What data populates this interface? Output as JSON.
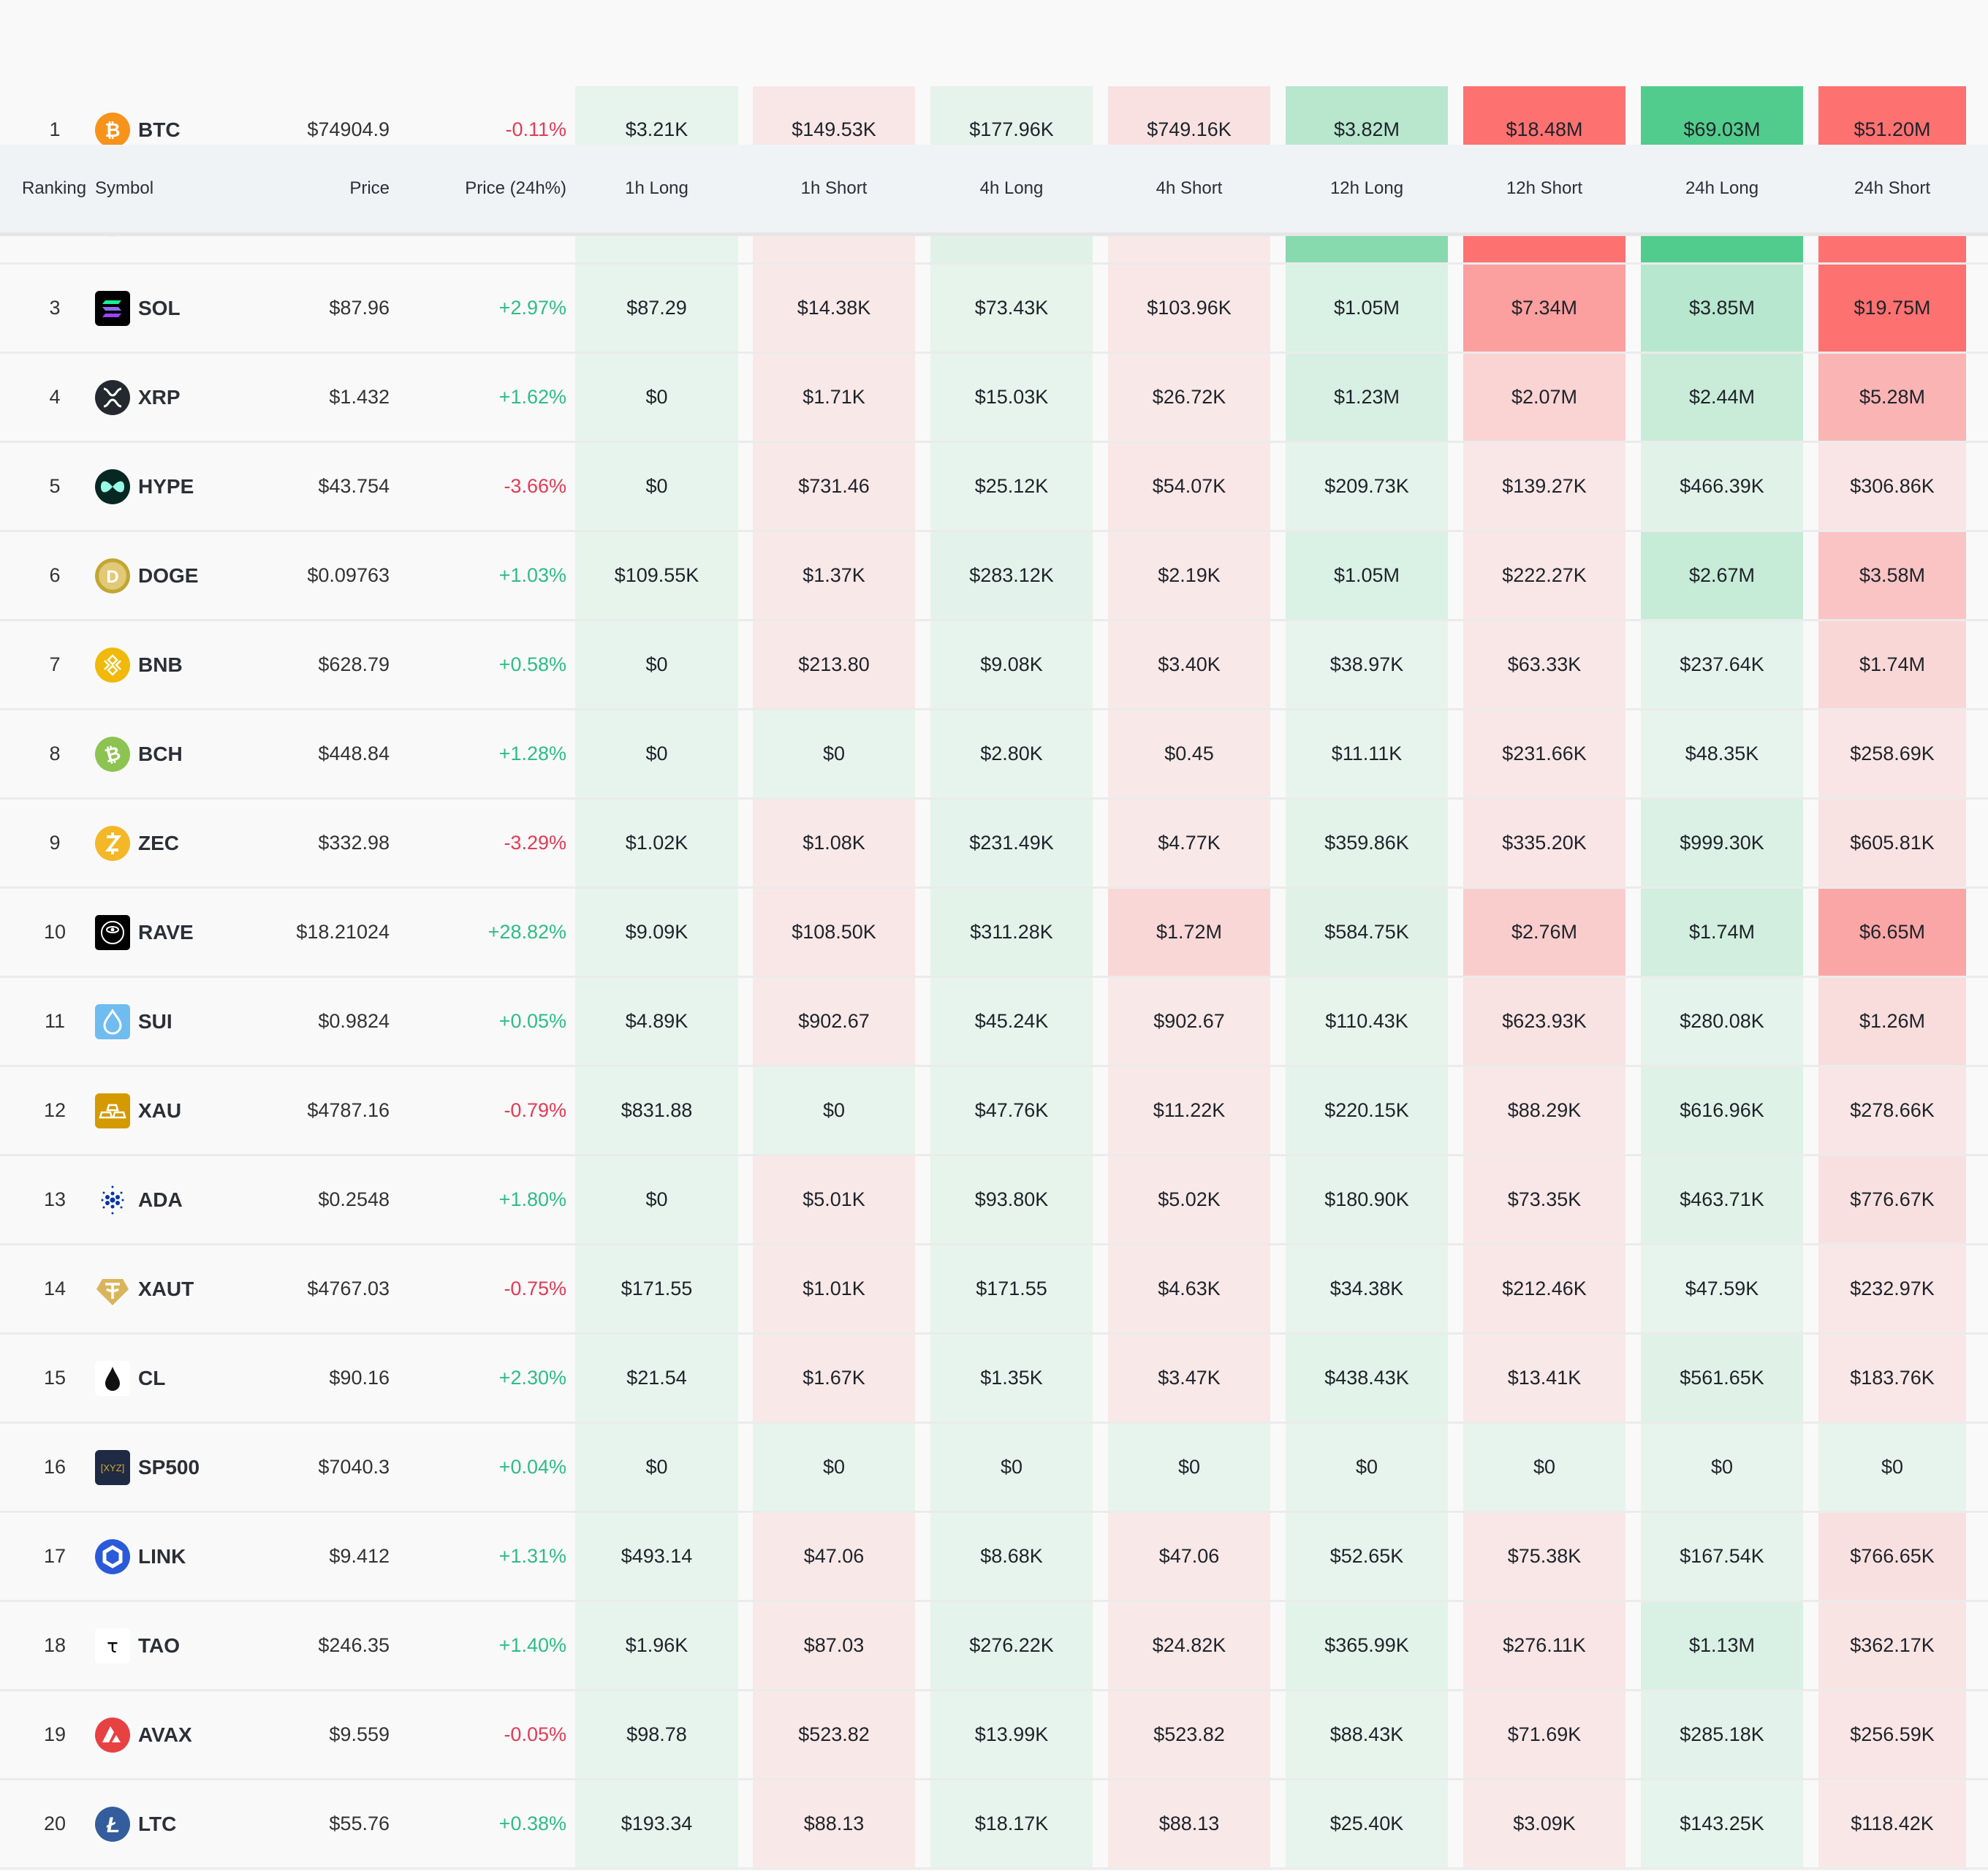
{
  "header": {
    "ranking": "Ranking",
    "symbol": "Symbol",
    "price": "Price",
    "price_change": "Price (24h%)",
    "columns": [
      "1h Long",
      "1h Short",
      "4h Long",
      "4h Short",
      "12h Long",
      "12h Short",
      "24h Long",
      "24h Short"
    ]
  },
  "colors": {
    "long_light": "#e7f4ed",
    "long_full": "#52cc8c",
    "short_light": "#f9e8e8",
    "short_full": "#fd7171",
    "up": "#2ebd85",
    "down": "#e33b54"
  },
  "partially_hidden_row_fill_levels": [
    0,
    0,
    0.05,
    0,
    0.65,
    1,
    1,
    1
  ],
  "rows": [
    {
      "rank": "1",
      "symbol": "BTC",
      "icon": "bitcoin-icon",
      "price": "$74904.9",
      "change": "-0.11%",
      "values": [
        "$3.21K",
        "$149.53K",
        "$177.96K",
        "$749.16K",
        "$3.82M",
        "$18.48M",
        "$69.03M",
        "$51.20M"
      ]
    },
    {
      "partial": true,
      "icon": "ethereum-icon"
    },
    {
      "rank": "3",
      "symbol": "SOL",
      "icon": "solana-icon",
      "price": "$87.96",
      "change": "+2.97%",
      "values": [
        "$87.29",
        "$14.38K",
        "$73.43K",
        "$103.96K",
        "$1.05M",
        "$7.34M",
        "$3.85M",
        "$19.75M"
      ]
    },
    {
      "rank": "4",
      "symbol": "XRP",
      "icon": "xrp-icon",
      "price": "$1.432",
      "change": "+1.62%",
      "values": [
        "$0",
        "$1.71K",
        "$15.03K",
        "$26.72K",
        "$1.23M",
        "$2.07M",
        "$2.44M",
        "$5.28M"
      ]
    },
    {
      "rank": "5",
      "symbol": "HYPE",
      "icon": "hyperliquid-icon",
      "price": "$43.754",
      "change": "-3.66%",
      "values": [
        "$0",
        "$731.46",
        "$25.12K",
        "$54.07K",
        "$209.73K",
        "$139.27K",
        "$466.39K",
        "$306.86K"
      ]
    },
    {
      "rank": "6",
      "symbol": "DOGE",
      "icon": "dogecoin-icon",
      "price": "$0.09763",
      "change": "+1.03%",
      "values": [
        "$109.55K",
        "$1.37K",
        "$283.12K",
        "$2.19K",
        "$1.05M",
        "$222.27K",
        "$2.67M",
        "$3.58M"
      ]
    },
    {
      "rank": "7",
      "symbol": "BNB",
      "icon": "bnb-icon",
      "price": "$628.79",
      "change": "+0.58%",
      "values": [
        "$0",
        "$213.80",
        "$9.08K",
        "$3.40K",
        "$38.97K",
        "$63.33K",
        "$237.64K",
        "$1.74M"
      ]
    },
    {
      "rank": "8",
      "symbol": "BCH",
      "icon": "bitcoin-cash-icon",
      "price": "$448.84",
      "change": "+1.28%",
      "values": [
        "$0",
        "$0",
        "$2.80K",
        "$0.45",
        "$11.11K",
        "$231.66K",
        "$48.35K",
        "$258.69K"
      ]
    },
    {
      "rank": "9",
      "symbol": "ZEC",
      "icon": "zcash-icon",
      "price": "$332.98",
      "change": "-3.29%",
      "values": [
        "$1.02K",
        "$1.08K",
        "$231.49K",
        "$4.77K",
        "$359.86K",
        "$335.20K",
        "$999.30K",
        "$605.81K"
      ]
    },
    {
      "rank": "10",
      "symbol": "RAVE",
      "icon": "rave-eye-icon",
      "price": "$18.21024",
      "change": "+28.82%",
      "values": [
        "$9.09K",
        "$108.50K",
        "$311.28K",
        "$1.72M",
        "$584.75K",
        "$2.76M",
        "$1.74M",
        "$6.65M"
      ]
    },
    {
      "rank": "11",
      "symbol": "SUI",
      "icon": "sui-droplet-icon",
      "price": "$0.9824",
      "change": "+0.05%",
      "values": [
        "$4.89K",
        "$902.67",
        "$45.24K",
        "$902.67",
        "$110.43K",
        "$623.93K",
        "$280.08K",
        "$1.26M"
      ]
    },
    {
      "rank": "12",
      "symbol": "XAU",
      "icon": "gold-bars-icon",
      "price": "$4787.16",
      "change": "-0.79%",
      "values": [
        "$831.88",
        "$0",
        "$47.76K",
        "$11.22K",
        "$220.15K",
        "$88.29K",
        "$616.96K",
        "$278.66K"
      ]
    },
    {
      "rank": "13",
      "symbol": "ADA",
      "icon": "cardano-icon",
      "price": "$0.2548",
      "change": "+1.80%",
      "values": [
        "$0",
        "$5.01K",
        "$93.80K",
        "$5.02K",
        "$180.90K",
        "$73.35K",
        "$463.71K",
        "$776.67K"
      ]
    },
    {
      "rank": "14",
      "symbol": "XAUT",
      "icon": "tether-gold-icon",
      "price": "$4767.03",
      "change": "-0.75%",
      "values": [
        "$171.55",
        "$1.01K",
        "$171.55",
        "$4.63K",
        "$34.38K",
        "$212.46K",
        "$47.59K",
        "$232.97K"
      ]
    },
    {
      "rank": "15",
      "symbol": "CL",
      "icon": "oil-drop-icon",
      "price": "$90.16",
      "change": "+2.30%",
      "values": [
        "$21.54",
        "$1.67K",
        "$1.35K",
        "$3.47K",
        "$438.43K",
        "$13.41K",
        "$561.65K",
        "$183.76K"
      ]
    },
    {
      "rank": "16",
      "symbol": "SP500",
      "icon": "xyz-icon",
      "icon_text": "[XYZ]",
      "price": "$7040.3",
      "change": "+0.04%",
      "values": [
        "$0",
        "$0",
        "$0",
        "$0",
        "$0",
        "$0",
        "$0",
        "$0"
      ]
    },
    {
      "rank": "17",
      "symbol": "LINK",
      "icon": "chainlink-icon",
      "price": "$9.412",
      "change": "+1.31%",
      "values": [
        "$493.14",
        "$47.06",
        "$8.68K",
        "$47.06",
        "$52.65K",
        "$75.38K",
        "$167.54K",
        "$766.65K"
      ]
    },
    {
      "rank": "18",
      "symbol": "TAO",
      "icon": "bittensor-icon",
      "icon_text": "τ",
      "price": "$246.35",
      "change": "+1.40%",
      "values": [
        "$1.96K",
        "$87.03",
        "$276.22K",
        "$24.82K",
        "$365.99K",
        "$276.11K",
        "$1.13M",
        "$362.17K"
      ]
    },
    {
      "rank": "19",
      "symbol": "AVAX",
      "icon": "avalanche-icon",
      "price": "$9.559",
      "change": "-0.05%",
      "values": [
        "$98.78",
        "$523.82",
        "$13.99K",
        "$523.82",
        "$88.43K",
        "$71.69K",
        "$285.18K",
        "$256.59K"
      ]
    },
    {
      "rank": "20",
      "symbol": "LTC",
      "icon": "litecoin-icon",
      "price": "$55.76",
      "change": "+0.38%",
      "values": [
        "$193.34",
        "$88.13",
        "$18.17K",
        "$88.13",
        "$25.40K",
        "$3.09K",
        "$143.25K",
        "$118.42K"
      ]
    }
  ]
}
